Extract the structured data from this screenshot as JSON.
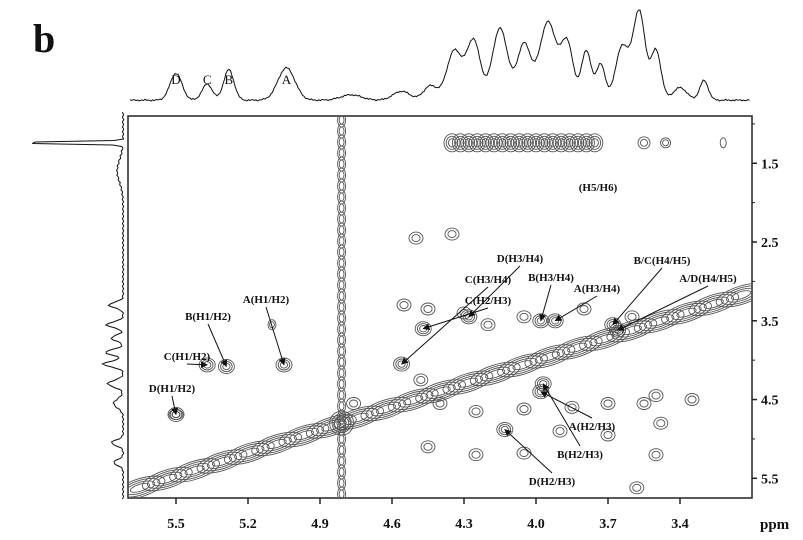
{
  "figure": {
    "panel_letter": "b"
  },
  "chart_data": {
    "type": "2D NMR contour (COSY)",
    "x_unit": "ppm",
    "x_axis": {
      "reversed": true,
      "range": [
        5.7,
        3.1
      ],
      "ticks": [
        "5.5",
        "5.2",
        "4.9",
        "4.6",
        "4.3",
        "4.0",
        "3.7",
        "3.4"
      ]
    },
    "y_axis": {
      "range": [
        0.9,
        5.75
      ],
      "ticks": [
        "1.5",
        "2.5",
        "3.5",
        "4.5",
        "5.5"
      ]
    },
    "projection_peaks": [
      {
        "label": "D",
        "ppm": 5.5
      },
      {
        "label": "C",
        "ppm": 5.37
      },
      {
        "label": "B",
        "ppm": 5.28
      },
      {
        "label": "A",
        "ppm": 5.04
      }
    ],
    "cross_peaks": [
      {
        "label": "D(H1/H2)",
        "x": 5.5,
        "y": 4.69
      },
      {
        "label": "C(H1/H2)",
        "x": 5.37,
        "y": 4.06
      },
      {
        "label": "B(H1/H2)",
        "x": 5.29,
        "y": 4.08
      },
      {
        "label": "A(H1/H2)",
        "x": 5.05,
        "y": 4.06
      },
      {
        "label": "C(H3/H4)",
        "x": 4.56,
        "y": 4.05
      },
      {
        "label": "C(H2/H3)",
        "x": 4.47,
        "y": 3.6
      },
      {
        "label": "D(H3/H4)",
        "x": 4.28,
        "y": 3.45
      },
      {
        "label": "B(H3/H4)",
        "x": 3.98,
        "y": 3.5
      },
      {
        "label": "A(H3/H4)",
        "x": 3.92,
        "y": 3.5
      },
      {
        "label": "B/C(H4/H5)",
        "x": 3.68,
        "y": 3.55
      },
      {
        "label": "A/D(H4/H5)",
        "x": 3.66,
        "y": 3.62
      },
      {
        "label": "A(H2/H3)",
        "x": 3.98,
        "y": 4.4
      },
      {
        "label": "B(H2/H3)",
        "x": 3.97,
        "y": 4.3
      },
      {
        "label": "D(H2/H3)",
        "x": 4.13,
        "y": 4.88
      },
      {
        "label": "(H5/H6)",
        "x": 3.95,
        "y": 1.24
      }
    ]
  }
}
